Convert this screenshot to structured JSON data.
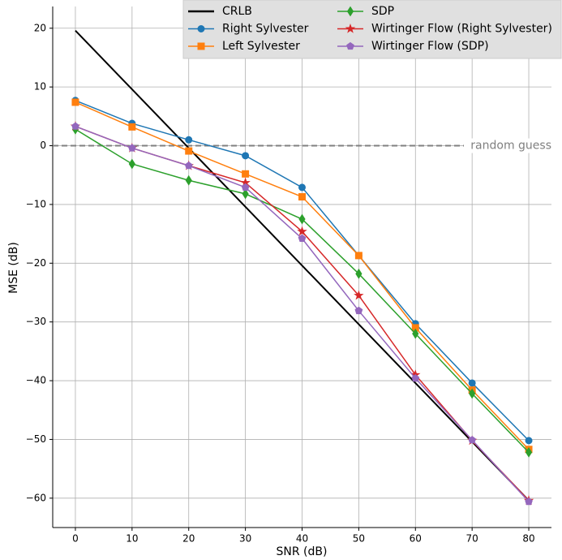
{
  "chart_data": {
    "type": "line",
    "x_label": "SNR (dB)",
    "y_label": "MSE (dB)",
    "x": [
      0,
      10,
      20,
      30,
      40,
      50,
      60,
      70,
      80
    ],
    "xlim": [
      -4,
      84
    ],
    "xticks": [
      0,
      10,
      20,
      30,
      40,
      50,
      60,
      70,
      80
    ],
    "ylim": [
      -65,
      23.7
    ],
    "yticks": [
      {
        "value": -60,
        "label": "−60"
      },
      {
        "value": -50,
        "label": "−50"
      },
      {
        "value": -40,
        "label": "−40"
      },
      {
        "value": -30,
        "label": "−30"
      },
      {
        "value": -20,
        "label": "−20"
      },
      {
        "value": -10,
        "label": "−10"
      },
      0,
      10,
      20
    ],
    "grid": true,
    "legend": "upper right",
    "reference_line": {
      "value": 0,
      "label": "random guess",
      "color": "#808080"
    },
    "series": [
      {
        "name": "CRLB",
        "color": "#000000",
        "marker": "none",
        "values": [
          19.6,
          9.6,
          -0.4,
          -10.4,
          -20.4,
          -30.4,
          -40.4,
          -50.4,
          -60.4
        ]
      },
      {
        "name": "Right Sylvester",
        "color": "#1f77b4",
        "marker": "circle",
        "values": [
          7.7,
          3.8,
          1.0,
          -1.7,
          -7.1,
          -18.7,
          -30.3,
          -40.4,
          -50.2
        ]
      },
      {
        "name": "Left Sylvester",
        "color": "#ff7f0e",
        "marker": "square",
        "values": [
          7.4,
          3.2,
          -0.9,
          -4.8,
          -8.7,
          -18.7,
          -31.0,
          -41.6,
          -51.7
        ]
      },
      {
        "name": "SDP",
        "color": "#2ca02c",
        "marker": "diamond",
        "values": [
          2.8,
          -3.1,
          -5.9,
          -8.2,
          -12.5,
          -21.8,
          -32.0,
          -42.2,
          -52.2
        ]
      },
      {
        "name": "Wirtinger Flow (Right Sylvester)",
        "color": "#d62728",
        "marker": "star",
        "values": [
          3.3,
          -0.4,
          -3.4,
          -6.3,
          -14.6,
          -25.5,
          -39.0,
          -50.2,
          -60.4
        ]
      },
      {
        "name": "Wirtinger Flow (SDP)",
        "color": "#9467bd",
        "marker": "pentagon",
        "values": [
          3.3,
          -0.4,
          -3.4,
          -7.1,
          -15.8,
          -28.1,
          -39.6,
          -50.1,
          -60.6
        ]
      }
    ]
  }
}
